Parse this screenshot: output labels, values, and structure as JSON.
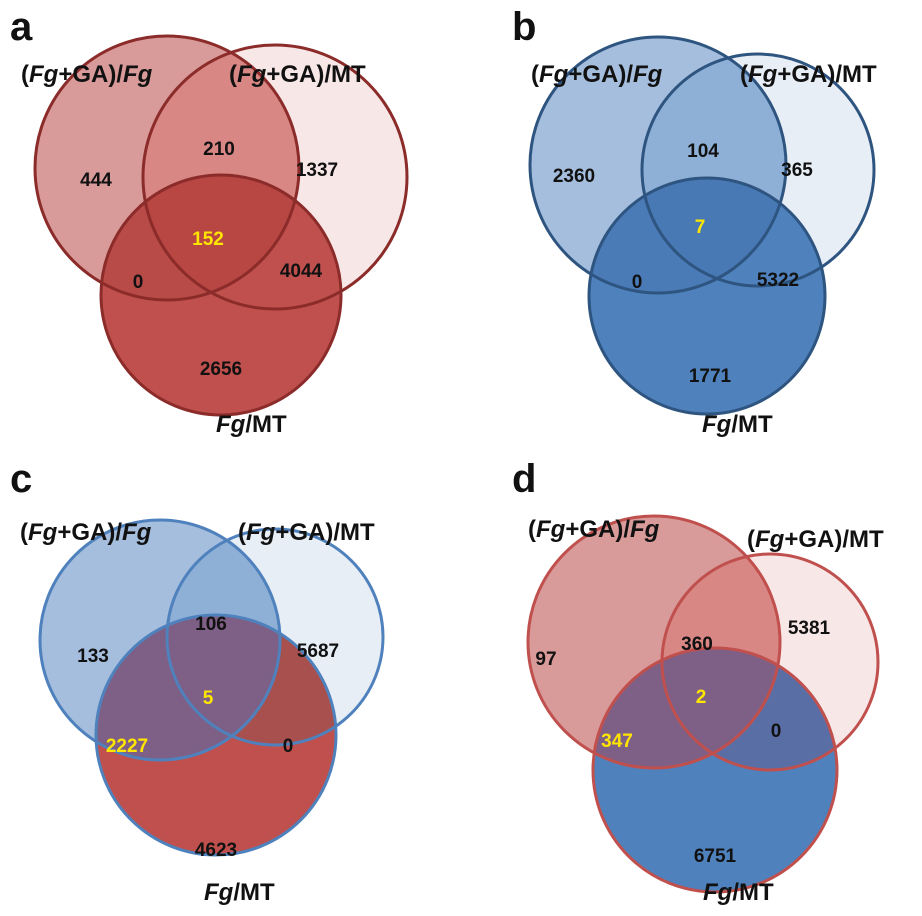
{
  "panels": [
    {
      "letter": "a",
      "labels": {
        "set_a": [
          "(",
          "Fg",
          "+GA)/",
          "Fg"
        ],
        "set_b": [
          "(",
          "Fg",
          "+GA)/MT"
        ],
        "set_c": [
          "Fg",
          "/MT"
        ]
      },
      "circle_colors": {
        "a": "#d99a9a",
        "b": "#f8e7e7",
        "c": "#c0504d"
      },
      "stroke_colors": {
        "a": "#8b2c2a",
        "b": "#8b2c2a",
        "c": "#8b2c2a"
      },
      "region_colors": {
        "ab": "#d98785",
        "ac": "#b84a47",
        "bc": "#c0504d",
        "abc": "#b84643"
      },
      "counts": {
        "a_only": "444",
        "b_only": "1337",
        "c_only": "2656",
        "ab": "210",
        "ac": "0",
        "bc": "4044",
        "abc": "152"
      },
      "highlight": [
        "abc"
      ]
    },
    {
      "letter": "b",
      "labels": {
        "set_a": [
          "(",
          "Fg",
          "+GA)/",
          "Fg"
        ],
        "set_b": [
          "(",
          "Fg",
          "+GA)/MT"
        ],
        "set_c": [
          "Fg",
          "/MT"
        ]
      },
      "circle_colors": {
        "a": "#a5bedd",
        "b": "#e8eef6",
        "c": "#4f81bd"
      },
      "stroke_colors": {
        "a": "#2e5480",
        "b": "#2e5480",
        "c": "#2e5480"
      },
      "region_colors": {
        "ab": "#8fb0d6",
        "ac": "#4a7bb7",
        "bc": "#4f81bd",
        "abc": "#4879b4"
      },
      "counts": {
        "a_only": "2360",
        "b_only": "365",
        "c_only": "1771",
        "ab": "104",
        "ac": "0",
        "bc": "5322",
        "abc": "7"
      },
      "highlight": [
        "abc"
      ]
    },
    {
      "letter": "c",
      "labels": {
        "set_a": [
          "(",
          "Fg",
          "+GA)/",
          "Fg"
        ],
        "set_b": [
          "(",
          "Fg",
          "+GA)/MT"
        ],
        "set_c": [
          "Fg",
          "/MT"
        ]
      },
      "circle_colors": {
        "a": "#a5bedd",
        "b": "#e8eef6",
        "c": "#c0504d"
      },
      "stroke_colors": {
        "a": "#4f81bd",
        "b": "#4f81bd",
        "c": "#4f81bd"
      },
      "region_colors": {
        "ab": "#8fb0d6",
        "ac": "#7e5f86",
        "bc": "#a8504e",
        "abc": "#7e5f86"
      },
      "counts": {
        "a_only": "133",
        "b_only": "5687",
        "c_only": "4623",
        "ab": "106",
        "ac": "2227",
        "bc": "0",
        "abc": "5"
      },
      "highlight": [
        "ac",
        "abc"
      ]
    },
    {
      "letter": "d",
      "labels": {
        "set_a": [
          "(",
          "Fg",
          "+GA)/",
          "Fg"
        ],
        "set_b": [
          "(",
          "Fg",
          "+GA)/MT"
        ],
        "set_c": [
          "Fg",
          "/MT"
        ]
      },
      "circle_colors": {
        "a": "#d99a9a",
        "b": "#f8e7e7",
        "c": "#4f81bd"
      },
      "stroke_colors": {
        "a": "#c0504d",
        "b": "#c0504d",
        "c": "#c0504d"
      },
      "region_colors": {
        "ab": "#d98785",
        "ac": "#7e5f86",
        "bc": "#5a6ea6",
        "abc": "#7e5f86"
      },
      "counts": {
        "a_only": "97",
        "b_only": "5381",
        "c_only": "6751",
        "ab": "360",
        "ac": "347",
        "bc": "0",
        "abc": "2"
      },
      "highlight": [
        "ac",
        "abc"
      ]
    }
  ]
}
